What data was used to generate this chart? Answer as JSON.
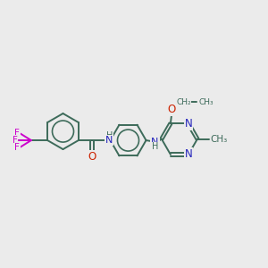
{
  "background_color": "#ebebeb",
  "bond_color": "#3d6b5a",
  "N_color": "#2222bb",
  "O_color": "#cc2200",
  "F_color": "#cc00cc",
  "figsize": [
    3.0,
    3.0
  ],
  "dpi": 100,
  "xlim": [
    0,
    10
  ],
  "ylim": [
    0,
    10
  ]
}
